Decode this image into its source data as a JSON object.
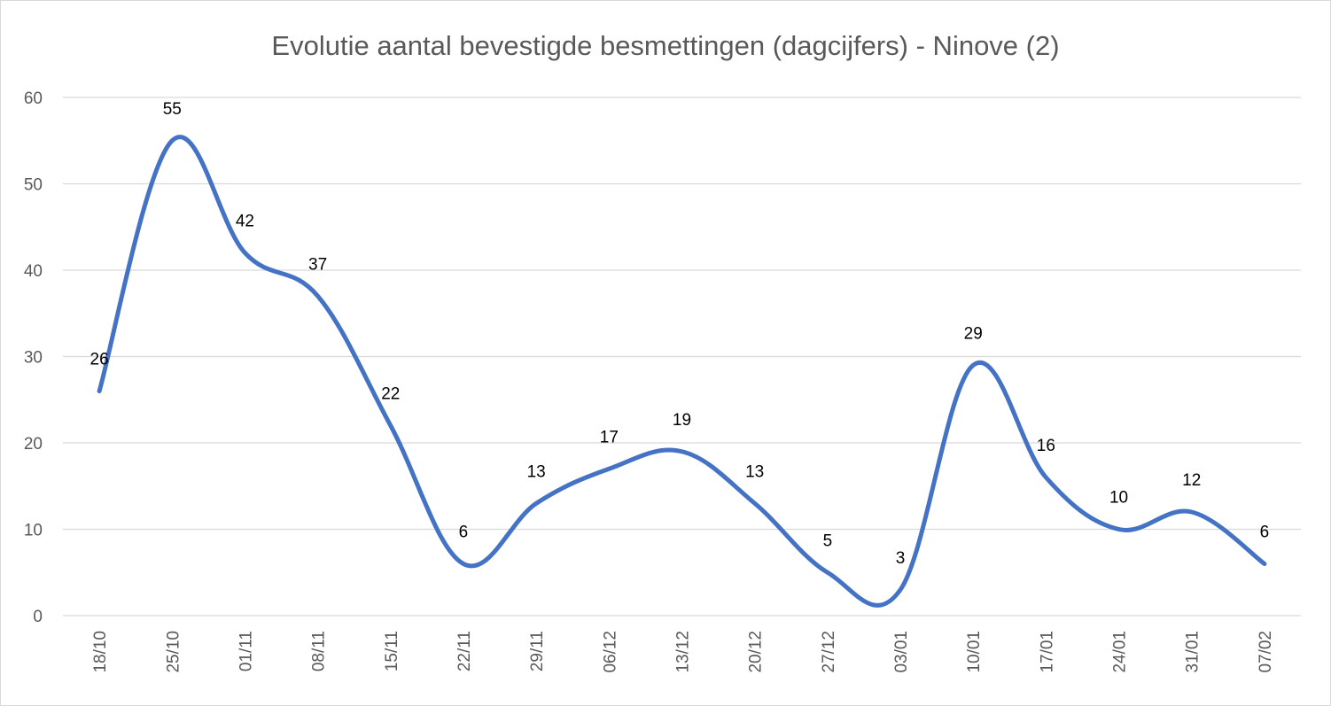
{
  "chart_data": {
    "type": "line",
    "title": "Evolutie aantal bevestigde besmettingen (dagcijfers) - Ninove (2)",
    "xlabel": "",
    "ylabel": "",
    "categories": [
      "18/10",
      "25/10",
      "01/11",
      "08/11",
      "15/11",
      "22/11",
      "29/11",
      "06/12",
      "13/12",
      "20/12",
      "27/12",
      "03/01",
      "10/01",
      "17/01",
      "24/01",
      "31/01",
      "07/02"
    ],
    "series": [
      {
        "name": "Ninove",
        "values": [
          26,
          55,
          42,
          37,
          22,
          6,
          13,
          17,
          19,
          13,
          5,
          3,
          29,
          16,
          10,
          12,
          6
        ],
        "color": "#4472C4"
      }
    ],
    "ylim": [
      0,
      60
    ],
    "yticks": [
      0,
      10,
      20,
      30,
      40,
      50,
      60
    ],
    "grid": true,
    "smooth": true,
    "data_labels": true,
    "legend": "none"
  }
}
